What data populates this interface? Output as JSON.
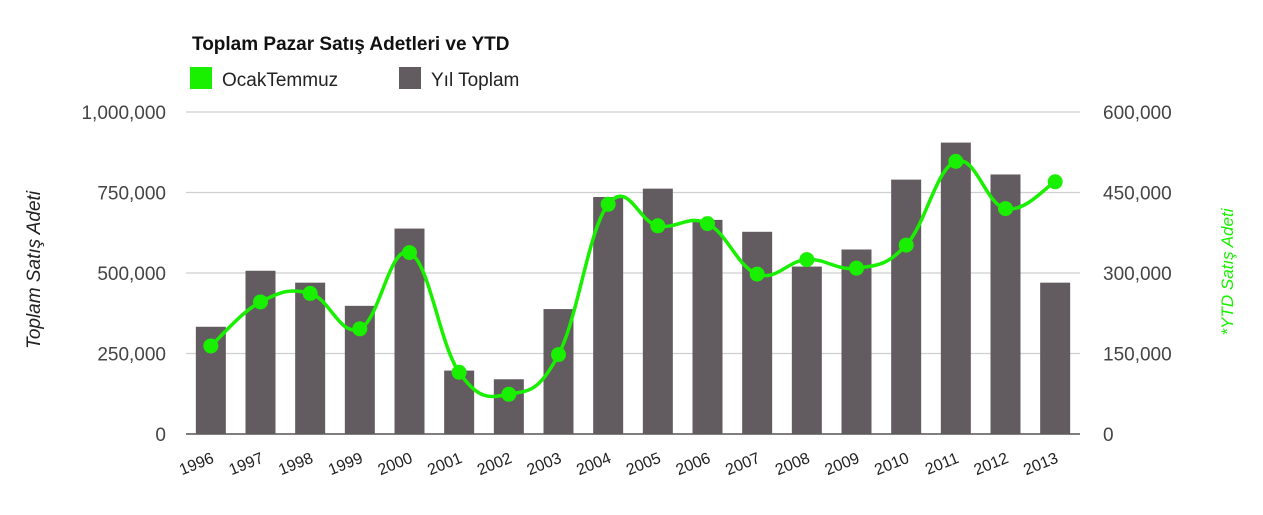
{
  "chart_data": {
    "type": "bar",
    "title": "Toplam Pazar Satış Adetleri ve YTD",
    "ylabel": "Toplam Satış Adeti",
    "ylabel_right": "*YTD Satış Adeti",
    "categories": [
      "1996",
      "1997",
      "1998",
      "1999",
      "2000",
      "2001",
      "2002",
      "2003",
      "2004",
      "2005",
      "2006",
      "2007",
      "2008",
      "2009",
      "2010",
      "2011",
      "2012",
      "2013"
    ],
    "ylim": [
      0,
      1000000
    ],
    "ylim_right": [
      0,
      600000
    ],
    "yticks_left": [
      "0",
      "250,000",
      "500,000",
      "750,000",
      "1,000,000"
    ],
    "yticks_right": [
      "0",
      "150,000",
      "300,000",
      "450,000",
      "600,000"
    ],
    "grid": true,
    "legend_position": "top-left",
    "series": [
      {
        "name": "Yıl Toplam",
        "type": "bar",
        "axis": "left",
        "color": "#625c60",
        "values": [
          333000,
          507000,
          470000,
          398000,
          638000,
          197000,
          170000,
          388000,
          736000,
          762000,
          665000,
          628000,
          520000,
          573000,
          790000,
          905000,
          806000,
          470000
        ]
      },
      {
        "name": "OcakTemmuz",
        "type": "line",
        "axis": "right",
        "color": "#19f000",
        "values": [
          164000,
          246000,
          262000,
          196000,
          338000,
          115000,
          74000,
          148000,
          428000,
          388000,
          392000,
          298000,
          325000,
          309000,
          352000,
          508000,
          420000,
          470000
        ]
      }
    ]
  }
}
